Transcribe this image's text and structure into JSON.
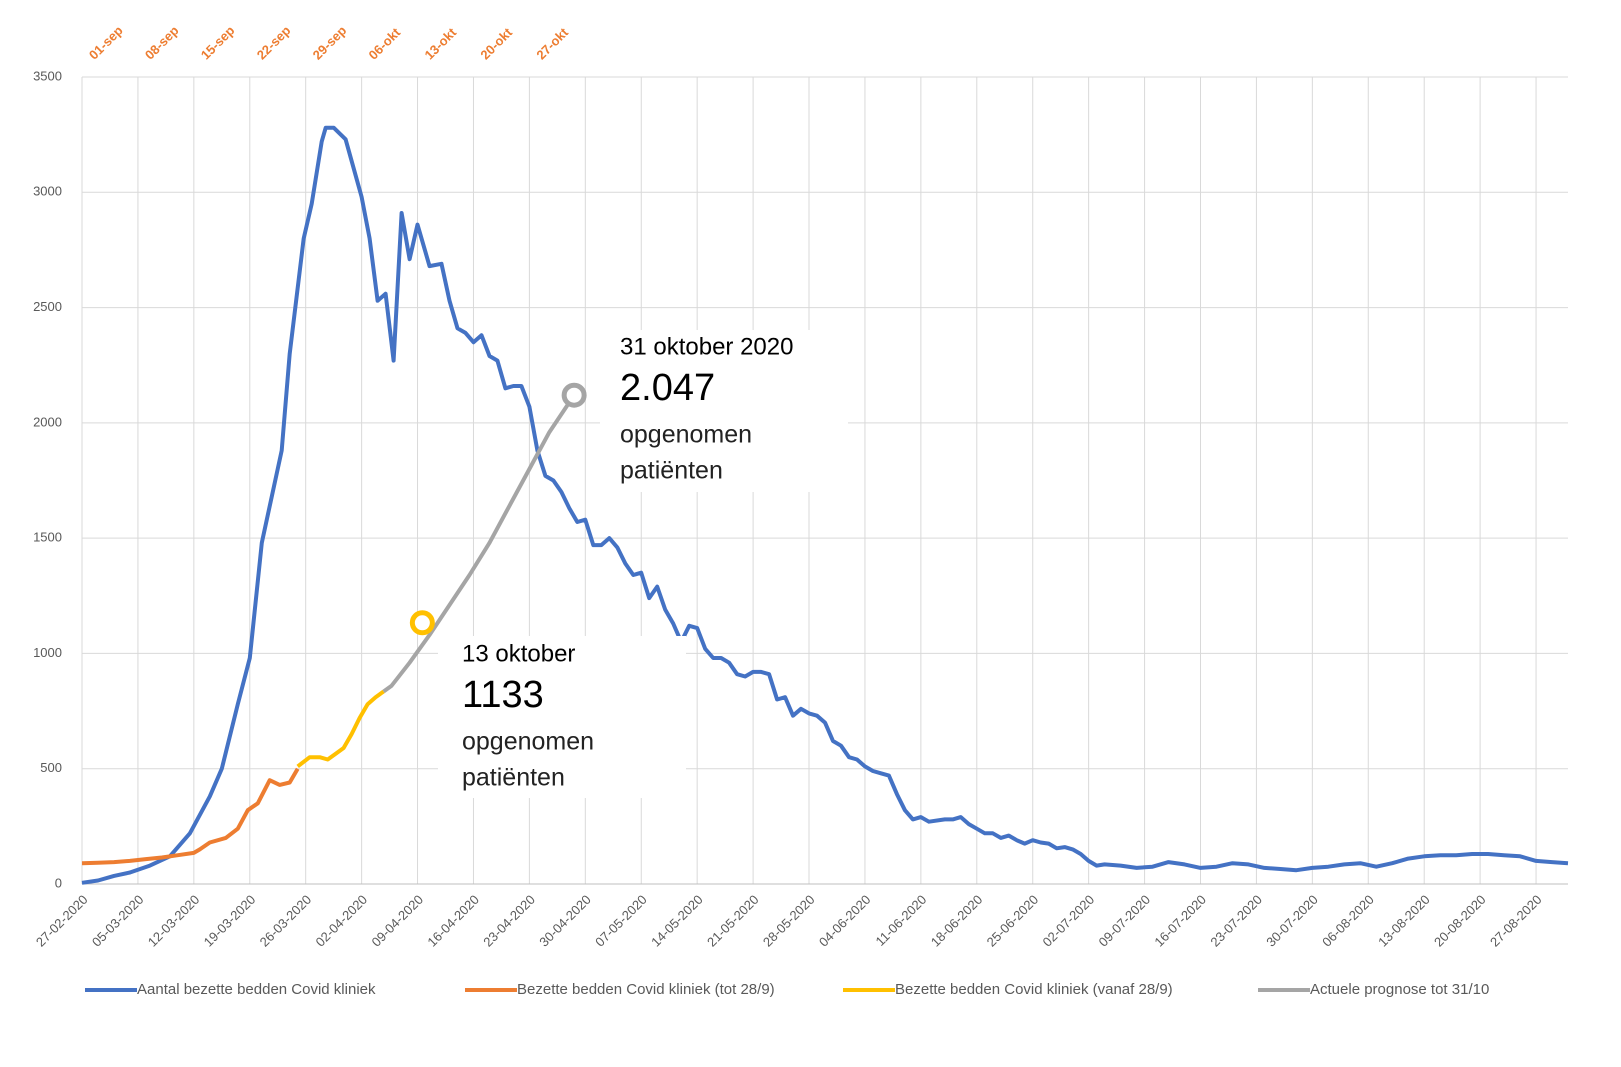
{
  "chart_data": {
    "type": "line",
    "xlim": [
      0,
      186
    ],
    "ylim": [
      0,
      3500
    ],
    "yticks": [
      0,
      500,
      1000,
      1500,
      2000,
      2500,
      3000,
      3500
    ],
    "grid": true,
    "legend": "bottom",
    "xticks": [
      {
        "value": 0,
        "label": "27-02-2020"
      },
      {
        "value": 7,
        "label": "05-03-2020"
      },
      {
        "value": 14,
        "label": "12-03-2020"
      },
      {
        "value": 21,
        "label": "19-03-2020"
      },
      {
        "value": 28,
        "label": "26-03-2020"
      },
      {
        "value": 35,
        "label": "02-04-2020"
      },
      {
        "value": 42,
        "label": "09-04-2020"
      },
      {
        "value": 49,
        "label": "16-04-2020"
      },
      {
        "value": 56,
        "label": "23-04-2020"
      },
      {
        "value": 63,
        "label": "30-04-2020"
      },
      {
        "value": 70,
        "label": "07-05-2020"
      },
      {
        "value": 77,
        "label": "14-05-2020"
      },
      {
        "value": 84,
        "label": "21-05-2020"
      },
      {
        "value": 91,
        "label": "28-05-2020"
      },
      {
        "value": 98,
        "label": "04-06-2020"
      },
      {
        "value": 105,
        "label": "11-06-2020"
      },
      {
        "value": 112,
        "label": "18-06-2020"
      },
      {
        "value": 119,
        "label": "25-06-2020"
      },
      {
        "value": 126,
        "label": "02-07-2020"
      },
      {
        "value": 133,
        "label": "09-07-2020"
      },
      {
        "value": 140,
        "label": "16-07-2020"
      },
      {
        "value": 147,
        "label": "23-07-2020"
      },
      {
        "value": 154,
        "label": "30-07-2020"
      },
      {
        "value": 161,
        "label": "06-08-2020"
      },
      {
        "value": 168,
        "label": "13-08-2020"
      },
      {
        "value": 175,
        "label": "20-08-2020"
      },
      {
        "value": 182,
        "label": "27-08-2020"
      }
    ],
    "x2ticks": [
      {
        "value": 0,
        "label": "01-sep"
      },
      {
        "value": 7,
        "label": "08-sep"
      },
      {
        "value": 14,
        "label": "15-sep"
      },
      {
        "value": 21,
        "label": "22-sep"
      },
      {
        "value": 28,
        "label": "29-sep"
      },
      {
        "value": 35,
        "label": "06-okt"
      },
      {
        "value": 42,
        "label": "13-okt"
      },
      {
        "value": 49,
        "label": "20-okt"
      },
      {
        "value": 56,
        "label": "27-okt"
      }
    ],
    "x2color": "#ed7d31",
    "series": [
      {
        "name": "Aantal bezette bedden Covid kliniek",
        "color": "#4472c4",
        "x": [
          0,
          2,
          4,
          6,
          8.5,
          11,
          13.5,
          16,
          17.5,
          19.5,
          21,
          22.5,
          25,
          26,
          27.75,
          28.75,
          30,
          30.5,
          31.5,
          33,
          35,
          36,
          37,
          38,
          39,
          40,
          41,
          42,
          43,
          43.5,
          45,
          46,
          47,
          48,
          49,
          50,
          51,
          52,
          53,
          54,
          55,
          56,
          57,
          58,
          59,
          60,
          61,
          62,
          63,
          64,
          65,
          66,
          67,
          68,
          69,
          70,
          71,
          72,
          73,
          74,
          75,
          76,
          77,
          78,
          79,
          80,
          81,
          82,
          83,
          84,
          85,
          86,
          87,
          88,
          89,
          90,
          91,
          92,
          93,
          94,
          95,
          96,
          97,
          98,
          99,
          100,
          101,
          102,
          103,
          104,
          105,
          106,
          108,
          109,
          110,
          111,
          112,
          113,
          114,
          115,
          116,
          117,
          118,
          119,
          120,
          121,
          122,
          123,
          124,
          125,
          126,
          127,
          128,
          130,
          132,
          134,
          136,
          138,
          140,
          142,
          144,
          146,
          148,
          150,
          152,
          154,
          156,
          158,
          160,
          162,
          164,
          166,
          168,
          170,
          172,
          174,
          176,
          178,
          180,
          182,
          184,
          186
        ],
        "values": [
          5,
          15,
          35,
          50,
          80,
          120,
          220,
          380,
          500,
          780,
          980,
          1480,
          1880,
          2300,
          2800,
          2950,
          3220,
          3280,
          3280,
          3230,
          2980,
          2800,
          2530,
          2560,
          2270,
          2910,
          2710,
          2860,
          2740,
          2680,
          2690,
          2530,
          2410,
          2390,
          2350,
          2380,
          2290,
          2270,
          2150,
          2160,
          2160,
          2070,
          1880,
          1770,
          1750,
          1700,
          1630,
          1570,
          1580,
          1470,
          1470,
          1500,
          1460,
          1390,
          1340,
          1350,
          1240,
          1290,
          1190,
          1130,
          1050,
          1120,
          1110,
          1020,
          980,
          980,
          960,
          910,
          900,
          920,
          920,
          910,
          800,
          810,
          730,
          760,
          740,
          730,
          700,
          620,
          600,
          550,
          540,
          510,
          490,
          480,
          470,
          390,
          320,
          280,
          290,
          270,
          280,
          280,
          290,
          260,
          240,
          220,
          220,
          200,
          210,
          190,
          175,
          190,
          180,
          175,
          155,
          160,
          150,
          130,
          100,
          80,
          85,
          80,
          70,
          75,
          95,
          85,
          70,
          75,
          90,
          85,
          70,
          65,
          60,
          70,
          75,
          85,
          90,
          75,
          90,
          110,
          120,
          125,
          125,
          130,
          130,
          125,
          120,
          100,
          95,
          90
        ]
      },
      {
        "name": "Bezette bedden Covid kliniek (tot 28/9)",
        "color": "#ed7d31",
        "x": [
          0,
          2,
          4,
          6,
          8,
          10,
          12,
          14,
          14.75,
          16,
          18,
          19.5,
          20.75,
          22,
          23.5,
          24.75,
          26,
          27
        ],
        "values": [
          90,
          92,
          95,
          100,
          108,
          115,
          125,
          135,
          150,
          180,
          200,
          240,
          320,
          350,
          450,
          430,
          440,
          500
        ]
      },
      {
        "name": "Bezette bedden Covid kliniek (vanaf 28/9)",
        "color": "#ffc000",
        "x": [
          27,
          28.5,
          29.75,
          30.75,
          31.75,
          32.75,
          33.75,
          34.75,
          35.75,
          36.75,
          37.75
        ],
        "values": [
          510,
          550,
          550,
          540,
          565,
          590,
          650,
          720,
          780,
          810,
          835
        ]
      },
      {
        "name": "Actuele prognose tot 31/10",
        "color": "#a5a5a5",
        "x": [
          37.75,
          38.75,
          41,
          43.5,
          46,
          48.5,
          51,
          53.5,
          56,
          58.5,
          61.6
        ],
        "values": [
          835,
          860,
          960,
          1080,
          1210,
          1340,
          1480,
          1640,
          1800,
          1960,
          2120
        ]
      }
    ],
    "annotations": [
      {
        "date": "31 oktober 2020",
        "label": "2.047",
        "lines": [
          "opgenomen",
          "patiënten"
        ]
      },
      {
        "date": "13 oktober",
        "label": "1133",
        "lines": [
          "opgenomen",
          "patiënten"
        ],
        "x": 42.6,
        "value": 1133,
        "color": "#ffc000"
      }
    ]
  }
}
